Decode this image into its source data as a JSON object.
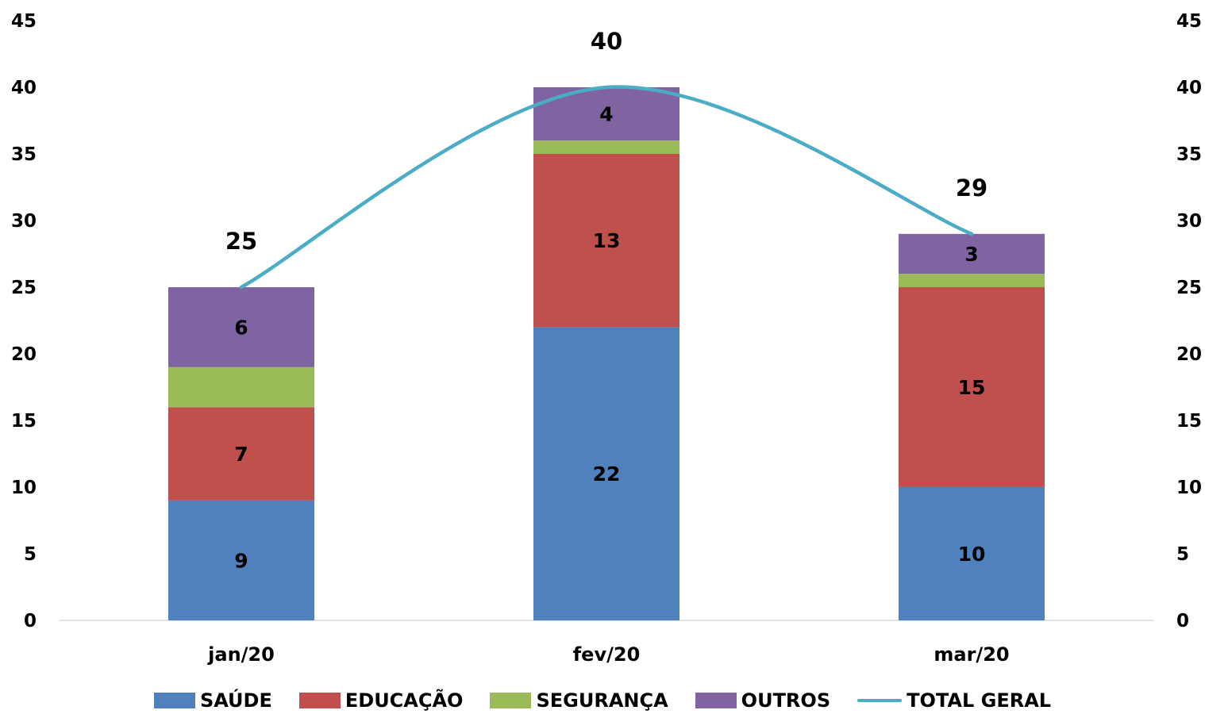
{
  "chart_data": {
    "type": "bar",
    "stacked": true,
    "categories": [
      "jan/20",
      "fev/20",
      "mar/20"
    ],
    "series": [
      {
        "name": "SAÚDE",
        "values": [
          9,
          22,
          10
        ],
        "color": "#4F81BD",
        "labels": [
          "9",
          "22",
          "10"
        ]
      },
      {
        "name": "EDUCAÇÃO",
        "values": [
          7,
          13,
          15
        ],
        "color": "#C0504D",
        "labels": [
          "7",
          "13",
          "15"
        ]
      },
      {
        "name": "SEGURANÇA",
        "values": [
          3,
          1,
          1
        ],
        "color": "#9BBB59",
        "labels": [
          "",
          "",
          ""
        ]
      },
      {
        "name": "OUTROS",
        "values": [
          6,
          4,
          3
        ],
        "color": "#8064A2",
        "labels": [
          "6",
          "4",
          "3"
        ]
      }
    ],
    "line_series": {
      "name": "TOTAL GERAL",
      "type": "line",
      "smooth": true,
      "values": [
        25,
        40,
        29
      ],
      "color": "#4BACC6",
      "labels": [
        "25",
        "40",
        "29"
      ]
    },
    "y_axis_left": {
      "min": 0,
      "max": 45,
      "ticks": [
        "0",
        "5",
        "10",
        "15",
        "20",
        "25",
        "30",
        "35",
        "40",
        "45"
      ]
    },
    "y_axis_right": {
      "min": 0,
      "max": 45,
      "ticks": [
        "0",
        "5",
        "10",
        "15",
        "20",
        "25",
        "30",
        "35",
        "40",
        "45"
      ]
    },
    "grid": false,
    "legend_position": "bottom"
  }
}
